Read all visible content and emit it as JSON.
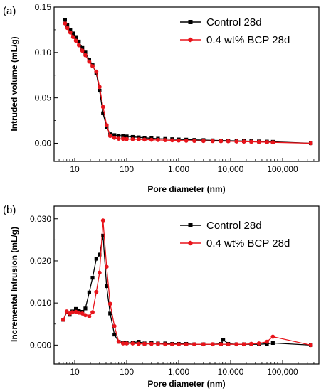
{
  "chart_data": [
    {
      "panel_label": "(a)",
      "type": "line",
      "xlabel": "Pore diameter (nm)",
      "ylabel": "Intruded volume (mL/g)",
      "xscale": "log",
      "xlim": [
        4,
        500000
      ],
      "ylim": [
        -0.02,
        0.15
      ],
      "xticks": [
        10,
        100,
        1000,
        10000,
        100000
      ],
      "xtick_labels": [
        "10",
        "100",
        "1,000",
        "10,000",
        "100,000"
      ],
      "yticks": [
        0,
        0.05,
        0.1,
        0.15
      ],
      "ytick_labels": [
        "0.00",
        "0.05",
        "0.10",
        "0.15"
      ],
      "grid": false,
      "legend": "top-right",
      "series": [
        {
          "name": "Control 28d",
          "color": "#000000",
          "marker": "square",
          "x": [
            6.5,
            7.2,
            8.2,
            9.3,
            10.5,
            12,
            14,
            16,
            19,
            22,
            26,
            30,
            35,
            41,
            48,
            58,
            70,
            85,
            100,
            130,
            170,
            220,
            300,
            400,
            550,
            750,
            1000,
            1400,
            2000,
            3000,
            4500,
            6500,
            9000,
            13000,
            18000,
            25000,
            35000,
            50000,
            65000,
            350000
          ],
          "y": [
            0.136,
            0.13,
            0.125,
            0.121,
            0.117,
            0.112,
            0.105,
            0.1,
            0.092,
            0.086,
            0.077,
            0.058,
            0.033,
            0.018,
            0.01,
            0.009,
            0.0085,
            0.008,
            0.0075,
            0.007,
            0.0065,
            0.006,
            0.0055,
            0.005,
            0.0048,
            0.0045,
            0.0042,
            0.004,
            0.0037,
            0.0035,
            0.0032,
            0.003,
            0.0028,
            0.0026,
            0.0024,
            0.0022,
            0.002,
            0.0018,
            0.0016,
            0
          ]
        },
        {
          "name": "0.4 wt% BCP 28d",
          "color": "#e8141b",
          "marker": "circle",
          "x": [
            6.5,
            7.2,
            8.2,
            9.3,
            10.5,
            12,
            14,
            16,
            19,
            22,
            26,
            30,
            35,
            41,
            48,
            58,
            70,
            85,
            100,
            130,
            170,
            220,
            300,
            400,
            550,
            750,
            1000,
            1400,
            2000,
            3000,
            4500,
            6500,
            9000,
            13000,
            18000,
            25000,
            35000,
            50000,
            65000,
            350000
          ],
          "y": [
            0.132,
            0.127,
            0.122,
            0.117,
            0.113,
            0.108,
            0.102,
            0.097,
            0.09,
            0.085,
            0.079,
            0.062,
            0.04,
            0.02,
            0.008,
            0.006,
            0.005,
            0.0048,
            0.0046,
            0.0044,
            0.0042,
            0.004,
            0.0038,
            0.0036,
            0.0034,
            0.0032,
            0.003,
            0.0028,
            0.0026,
            0.0025,
            0.0024,
            0.0023,
            0.0022,
            0.002,
            0.0018,
            0.0016,
            0.0014,
            0.0012,
            0.001,
            0
          ]
        }
      ]
    },
    {
      "panel_label": "(b)",
      "type": "line",
      "xlabel": "Pore diameter (nm)",
      "ylabel": "Incremental Intrusion (mL/g)",
      "xscale": "log",
      "xlim": [
        4,
        500000
      ],
      "ylim": [
        -0.0045,
        0.033
      ],
      "xticks": [
        10,
        100,
        1000,
        10000,
        100000
      ],
      "xtick_labels": [
        "10",
        "100",
        "1,000",
        "10,000",
        "100,000"
      ],
      "yticks": [
        0,
        0.01,
        0.02,
        0.03
      ],
      "ytick_labels": [
        "0.000",
        "0.010",
        "0.020",
        "0.030"
      ],
      "grid": false,
      "legend": "top-right",
      "series": [
        {
          "name": "Control 28d",
          "color": "#000000",
          "marker": "square",
          "x": [
            6,
            7,
            8,
            9,
            10.5,
            12,
            14,
            16,
            19,
            22,
            26,
            30,
            35,
            41,
            48,
            58,
            70,
            85,
            100,
            130,
            170,
            220,
            300,
            400,
            550,
            750,
            1000,
            1400,
            2000,
            3000,
            4500,
            6500,
            7200,
            9000,
            13000,
            18000,
            25000,
            35000,
            50000,
            65000,
            350000
          ],
          "y": [
            0.006,
            0.0078,
            0.0072,
            0.008,
            0.0086,
            0.0082,
            0.0079,
            0.0087,
            0.0125,
            0.016,
            0.0205,
            0.0215,
            0.026,
            0.014,
            0.0075,
            0.0025,
            0.0008,
            0.0006,
            0.0005,
            0.0006,
            0.0008,
            0.0004,
            0.0005,
            0.0004,
            0.0004,
            0.0003,
            0.0003,
            0.0003,
            0.0002,
            0.0002,
            0.0002,
            0.0003,
            0.0013,
            0.0003,
            0.0002,
            0.0002,
            0.0002,
            0.0002,
            0.0003,
            0.0005,
            0
          ]
        },
        {
          "name": "0.4 wt% BCP 28d",
          "color": "#e8141b",
          "marker": "circle",
          "x": [
            6,
            7,
            8,
            9,
            10.5,
            12,
            14,
            16,
            19,
            22,
            26,
            30,
            35,
            41,
            48,
            58,
            70,
            85,
            100,
            130,
            170,
            220,
            300,
            400,
            550,
            750,
            1000,
            1400,
            2000,
            3000,
            4500,
            6500,
            9000,
            13000,
            18000,
            25000,
            35000,
            50000,
            65000,
            350000
          ],
          "y": [
            0.006,
            0.008,
            0.0075,
            0.0078,
            0.0079,
            0.0077,
            0.0075,
            0.0071,
            0.0068,
            0.0078,
            0.0126,
            0.0172,
            0.0296,
            0.0186,
            0.0098,
            0.0045,
            0.0008,
            0.0004,
            0.0004,
            0.0004,
            0.0003,
            0.0003,
            0.0003,
            0.0003,
            0.0002,
            0.0002,
            0.0002,
            0.0002,
            0.0002,
            0.0002,
            0.0002,
            0.0002,
            0.0002,
            0.0002,
            0.0002,
            0.0003,
            0.0004,
            0.0008,
            0.002,
            0
          ]
        }
      ]
    }
  ]
}
